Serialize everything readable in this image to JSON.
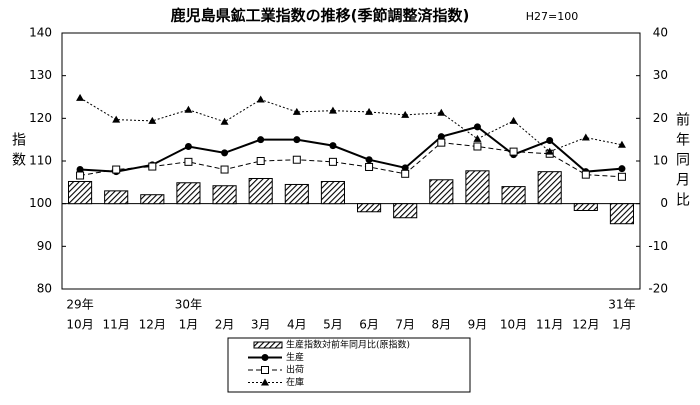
{
  "chart_data": {
    "type": "combo",
    "title": "鹿児島県鉱工業指数の推移(季節調整済指数)",
    "subtitle": "H27=100",
    "ylabel": "指数",
    "y2label": "前年同月比",
    "categories": [
      "10月",
      "11月",
      "12月",
      "1月",
      "2月",
      "3月",
      "4月",
      "5月",
      "6月",
      "7月",
      "8月",
      "9月",
      "10月",
      "11月",
      "12月",
      "1月"
    ],
    "category_years": [
      "29年",
      null,
      null,
      "30年",
      null,
      null,
      null,
      null,
      null,
      null,
      null,
      null,
      null,
      null,
      null,
      "31年"
    ],
    "ylim": [
      80,
      140
    ],
    "yticks": [
      80,
      90,
      100,
      110,
      120,
      130,
      140
    ],
    "y2lim": [
      -20,
      40
    ],
    "y2ticks": [
      -20,
      -10,
      0,
      10,
      20,
      30,
      40
    ],
    "grid": false,
    "legend": "bottom",
    "series": [
      {
        "name": "生産指数対前年同月比(原指数)",
        "type": "bar",
        "axis": "y2",
        "color": "#000000",
        "values": [
          5.2,
          3.0,
          2.1,
          4.9,
          4.2,
          5.9,
          4.5,
          5.2,
          -1.9,
          -3.3,
          5.6,
          7.7,
          4.0,
          7.5,
          -1.6,
          -4.7
        ]
      },
      {
        "name": "生産",
        "type": "line",
        "marker": "circle",
        "dash": "solid",
        "color": "#000000",
        "values": [
          108.0,
          107.5,
          109.1,
          113.4,
          111.9,
          115.0,
          115.0,
          113.6,
          110.3,
          108.4,
          115.7,
          118.0,
          111.5,
          114.8,
          107.5,
          108.2
        ]
      },
      {
        "name": "出荷",
        "type": "line",
        "marker": "square",
        "dash": "dashed",
        "color": "#000000",
        "values": [
          106.6,
          108.0,
          108.7,
          109.8,
          108.0,
          110.0,
          110.3,
          109.8,
          108.6,
          107.0,
          114.3,
          113.4,
          112.2,
          111.7,
          106.8,
          106.3
        ]
      },
      {
        "name": "在庫",
        "type": "line",
        "axis": "y2",
        "marker": "triangle",
        "dash": "dotted",
        "color": "#000000",
        "values": [
          24.8,
          19.7,
          19.4,
          22.0,
          19.2,
          24.4,
          21.5,
          21.8,
          21.5,
          20.8,
          21.3,
          15.2,
          19.4,
          12.2,
          15.5,
          13.8
        ]
      }
    ]
  }
}
